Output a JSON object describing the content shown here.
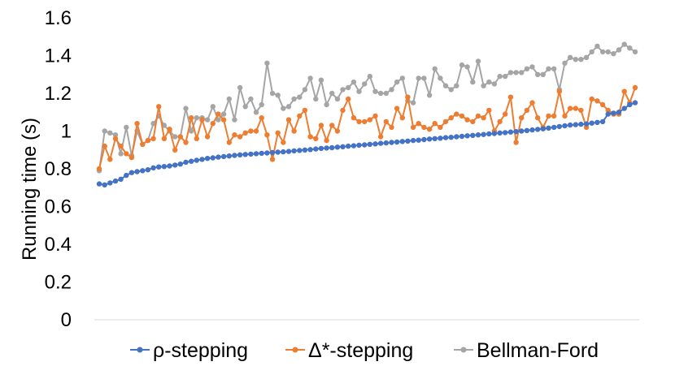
{
  "chart_data": {
    "type": "line",
    "title": "",
    "xlabel": "",
    "ylabel": "Running time (s)",
    "ylim": [
      0,
      1.6
    ],
    "y_ticks": [
      "0",
      "0.2",
      "0.4",
      "0.6",
      "0.8",
      "1",
      "1.2",
      "1.4",
      "1.6"
    ],
    "grid": false,
    "legend_position": "bottom",
    "x": [
      1,
      2,
      3,
      4,
      5,
      6,
      7,
      8,
      9,
      10,
      11,
      12,
      13,
      14,
      15,
      16,
      17,
      18,
      19,
      20,
      21,
      22,
      23,
      24,
      25,
      26,
      27,
      28,
      29,
      30,
      31,
      32,
      33,
      34,
      35,
      36,
      37,
      38,
      39,
      40,
      41,
      42,
      43,
      44,
      45,
      46,
      47,
      48,
      49,
      50,
      51,
      52,
      53,
      54,
      55,
      56,
      57,
      58,
      59,
      60,
      61,
      62,
      63,
      64,
      65,
      66,
      67,
      68,
      69,
      70,
      71,
      72,
      73,
      74,
      75,
      76,
      77,
      78,
      79,
      80,
      81,
      82,
      83,
      84,
      85,
      86,
      87,
      88,
      89,
      90,
      91,
      92,
      93,
      94,
      95,
      96,
      97,
      98,
      99,
      100
    ],
    "series": [
      {
        "name": "ρ-stepping",
        "color": "#4472C4",
        "values": [
          0.72,
          0.715,
          0.725,
          0.735,
          0.745,
          0.765,
          0.78,
          0.785,
          0.79,
          0.795,
          0.805,
          0.81,
          0.812,
          0.815,
          0.82,
          0.825,
          0.835,
          0.84,
          0.845,
          0.85,
          0.855,
          0.858,
          0.862,
          0.865,
          0.868,
          0.871,
          0.874,
          0.876,
          0.878,
          0.88,
          0.882,
          0.884,
          0.886,
          0.888,
          0.89,
          0.892,
          0.895,
          0.897,
          0.9,
          0.902,
          0.905,
          0.908,
          0.91,
          0.912,
          0.915,
          0.917,
          0.92,
          0.922,
          0.925,
          0.927,
          0.93,
          0.932,
          0.935,
          0.937,
          0.94,
          0.942,
          0.945,
          0.947,
          0.95,
          0.952,
          0.955,
          0.958,
          0.96,
          0.962,
          0.965,
          0.967,
          0.97,
          0.972,
          0.975,
          0.977,
          0.98,
          0.982,
          0.985,
          0.987,
          0.99,
          0.992,
          0.995,
          0.997,
          1.0,
          1.003,
          1.006,
          1.009,
          1.012,
          1.016,
          1.02,
          1.024,
          1.028,
          1.032,
          1.034,
          1.036,
          1.038,
          1.042,
          1.046,
          1.05,
          1.09,
          1.095,
          1.1,
          1.12,
          1.14,
          1.15
        ]
      },
      {
        "name": "Δ*-stepping",
        "color": "#ED7D31",
        "values": [
          0.8,
          0.92,
          0.85,
          0.96,
          0.92,
          0.88,
          0.86,
          1.04,
          0.93,
          0.95,
          0.96,
          1.13,
          0.96,
          1.01,
          0.9,
          0.97,
          0.94,
          1.07,
          0.96,
          1.06,
          0.97,
          1.04,
          1.09,
          1.06,
          0.94,
          0.98,
          0.97,
          0.99,
          1.0,
          1.0,
          1.07,
          0.98,
          0.85,
          0.99,
          0.94,
          1.06,
          1.0,
          1.08,
          1.11,
          0.97,
          0.96,
          1.03,
          0.95,
          1.03,
          1.0,
          1.11,
          1.17,
          1.07,
          1.05,
          1.05,
          1.06,
          1.08,
          0.97,
          1.05,
          1.02,
          1.12,
          1.07,
          1.18,
          1.02,
          1.04,
          1.02,
          1.01,
          1.04,
          1.02,
          1.05,
          1.07,
          1.09,
          1.08,
          1.06,
          1.05,
          1.08,
          1.07,
          1.11,
          1.0,
          1.05,
          1.09,
          1.18,
          0.94,
          1.07,
          1.11,
          1.15,
          1.07,
          1.02,
          1.08,
          1.08,
          1.21,
          1.08,
          1.12,
          1.12,
          1.11,
          1.02,
          1.17,
          1.16,
          1.14,
          1.11,
          1.09,
          1.09,
          1.21,
          1.15,
          1.23
        ]
      },
      {
        "name": "Bellman-Ford",
        "color": "#A5A5A5",
        "values": [
          0.79,
          1.0,
          0.99,
          0.98,
          0.88,
          1.02,
          0.87,
          1.0,
          0.93,
          0.95,
          1.04,
          1.08,
          1.03,
          1.0,
          0.97,
          0.97,
          1.12,
          1.0,
          1.07,
          1.07,
          1.06,
          1.13,
          1.06,
          1.09,
          1.17,
          1.06,
          1.23,
          1.13,
          1.17,
          1.1,
          1.14,
          1.36,
          1.2,
          1.19,
          1.12,
          1.13,
          1.17,
          1.18,
          1.22,
          1.28,
          1.17,
          1.27,
          1.14,
          1.2,
          1.17,
          1.22,
          1.23,
          1.26,
          1.21,
          1.25,
          1.29,
          1.21,
          1.2,
          1.2,
          1.22,
          1.26,
          1.28,
          1.16,
          1.15,
          1.28,
          1.28,
          1.19,
          1.33,
          1.28,
          1.24,
          1.22,
          1.24,
          1.35,
          1.34,
          1.26,
          1.37,
          1.24,
          1.26,
          1.25,
          1.29,
          1.29,
          1.31,
          1.31,
          1.31,
          1.33,
          1.34,
          1.3,
          1.3,
          1.33,
          1.33,
          1.22,
          1.36,
          1.39,
          1.38,
          1.38,
          1.39,
          1.42,
          1.45,
          1.42,
          1.42,
          1.41,
          1.43,
          1.46,
          1.44,
          1.42
        ]
      }
    ]
  }
}
